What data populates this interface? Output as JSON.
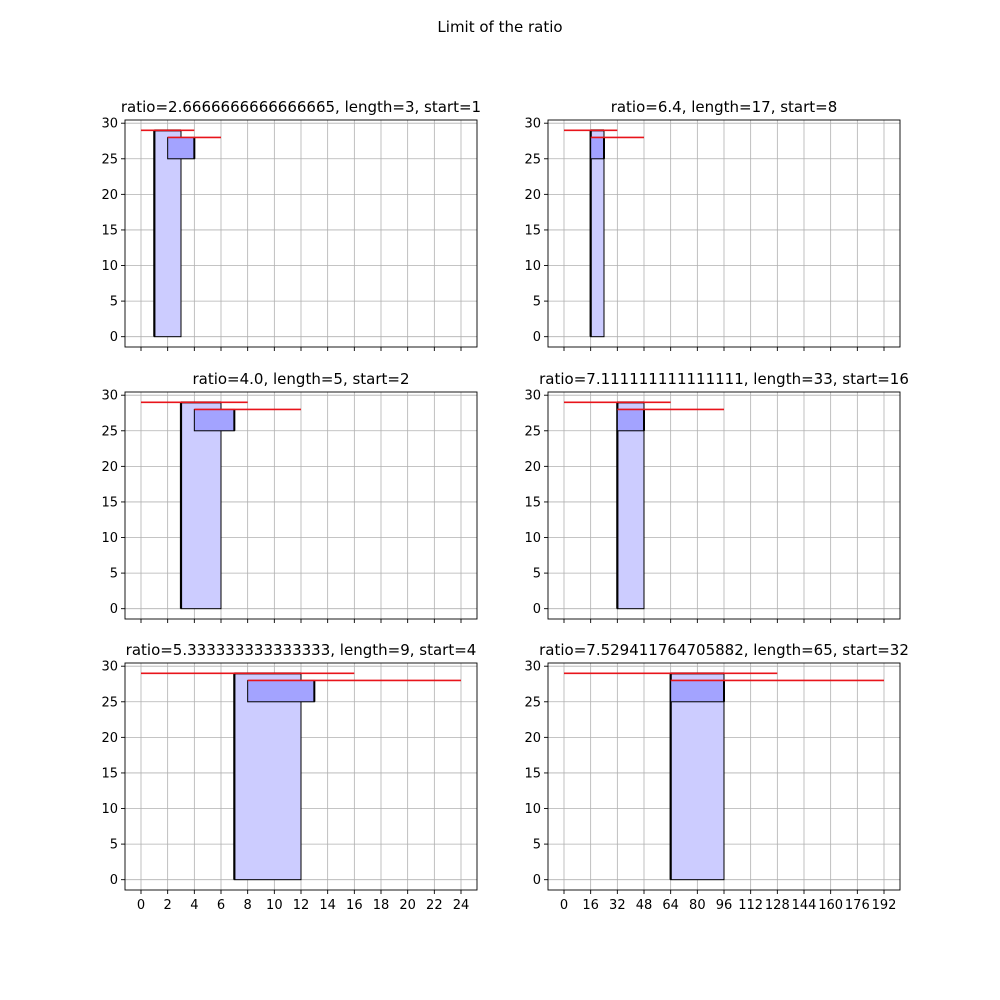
{
  "figure": {
    "suptitle": "Limit of the ratio"
  },
  "colors": {
    "grid": "#b0b0b0",
    "light_fill": "#ccccff",
    "dark_fill": "#a3a3ff",
    "red_line": "#e8141b",
    "edge": "#000000"
  },
  "chart_data": [
    {
      "type": "bar",
      "title": "ratio=2.6666666666666665, length=3, start=1",
      "xlim": [
        -1.2,
        25.2
      ],
      "ylim": [
        -1.45,
        30.45
      ],
      "yticks": [
        0,
        5,
        10,
        15,
        20,
        25,
        30
      ],
      "xticks": [
        0,
        2,
        4,
        6,
        8,
        10,
        12,
        14,
        16,
        18,
        20,
        22,
        24
      ],
      "xtick_labels_shown": false,
      "light_bar": {
        "x0": 1,
        "x1": 3,
        "y0": 0,
        "y1": 29
      },
      "dark_bar": {
        "x0": 2,
        "x1": 4,
        "y0": 25,
        "y1": 28
      },
      "red_lines": [
        {
          "x0": 0,
          "x1": 4,
          "y": 29
        },
        {
          "x0": 2,
          "x1": 6,
          "y": 28
        }
      ]
    },
    {
      "type": "bar",
      "title": "ratio=6.4, length=17, start=8",
      "xlim": [
        -9.6,
        201.6
      ],
      "ylim": [
        -1.45,
        30.45
      ],
      "yticks": [
        0,
        5,
        10,
        15,
        20,
        25,
        30
      ],
      "xticks": [
        0,
        16,
        32,
        48,
        64,
        80,
        96,
        112,
        128,
        144,
        160,
        176,
        192
      ],
      "xtick_labels_shown": false,
      "light_bar": {
        "x0": 16,
        "x1": 24,
        "y0": 0,
        "y1": 29
      },
      "dark_bar": {
        "x0": 16,
        "x1": 24,
        "y0": 25,
        "y1": 28
      },
      "red_lines": [
        {
          "x0": 0,
          "x1": 32,
          "y": 29
        },
        {
          "x0": 16,
          "x1": 48,
          "y": 28
        }
      ]
    },
    {
      "type": "bar",
      "title": "ratio=4.0, length=5, start=2",
      "xlim": [
        -1.2,
        25.2
      ],
      "ylim": [
        -1.45,
        30.45
      ],
      "yticks": [
        0,
        5,
        10,
        15,
        20,
        25,
        30
      ],
      "xticks": [
        0,
        2,
        4,
        6,
        8,
        10,
        12,
        14,
        16,
        18,
        20,
        22,
        24
      ],
      "xtick_labels_shown": false,
      "light_bar": {
        "x0": 3,
        "x1": 6,
        "y0": 0,
        "y1": 29
      },
      "dark_bar": {
        "x0": 4,
        "x1": 7,
        "y0": 25,
        "y1": 28
      },
      "red_lines": [
        {
          "x0": 0,
          "x1": 8,
          "y": 29
        },
        {
          "x0": 4,
          "x1": 12,
          "y": 28
        }
      ]
    },
    {
      "type": "bar",
      "title": "ratio=7.111111111111111, length=33, start=16",
      "xlim": [
        -9.6,
        201.6
      ],
      "ylim": [
        -1.45,
        30.45
      ],
      "yticks": [
        0,
        5,
        10,
        15,
        20,
        25,
        30
      ],
      "xticks": [
        0,
        16,
        32,
        48,
        64,
        80,
        96,
        112,
        128,
        144,
        160,
        176,
        192
      ],
      "xtick_labels_shown": false,
      "light_bar": {
        "x0": 32,
        "x1": 48,
        "y0": 0,
        "y1": 29
      },
      "dark_bar": {
        "x0": 32,
        "x1": 48,
        "y0": 25,
        "y1": 28
      },
      "red_lines": [
        {
          "x0": 0,
          "x1": 64,
          "y": 29
        },
        {
          "x0": 32,
          "x1": 96,
          "y": 28
        }
      ]
    },
    {
      "type": "bar",
      "title": "ratio=5.333333333333333, length=9, start=4",
      "xlim": [
        -1.2,
        25.2
      ],
      "ylim": [
        -1.45,
        30.45
      ],
      "yticks": [
        0,
        5,
        10,
        15,
        20,
        25,
        30
      ],
      "xticks": [
        0,
        2,
        4,
        6,
        8,
        10,
        12,
        14,
        16,
        18,
        20,
        22,
        24
      ],
      "xtick_labels_shown": true,
      "light_bar": {
        "x0": 7,
        "x1": 12,
        "y0": 0,
        "y1": 29
      },
      "dark_bar": {
        "x0": 8,
        "x1": 13,
        "y0": 25,
        "y1": 28
      },
      "red_lines": [
        {
          "x0": 0,
          "x1": 16,
          "y": 29
        },
        {
          "x0": 8,
          "x1": 24,
          "y": 28
        }
      ]
    },
    {
      "type": "bar",
      "title": "ratio=7.529411764705882, length=65, start=32",
      "xlim": [
        -9.6,
        201.6
      ],
      "ylim": [
        -1.45,
        30.45
      ],
      "yticks": [
        0,
        5,
        10,
        15,
        20,
        25,
        30
      ],
      "xticks": [
        0,
        16,
        32,
        48,
        64,
        80,
        96,
        112,
        128,
        144,
        160,
        176,
        192
      ],
      "xtick_labels_shown": true,
      "light_bar": {
        "x0": 64,
        "x1": 96,
        "y0": 0,
        "y1": 29
      },
      "dark_bar": {
        "x0": 64,
        "x1": 96,
        "y0": 25,
        "y1": 28
      },
      "red_lines": [
        {
          "x0": 0,
          "x1": 128,
          "y": 29
        },
        {
          "x0": 64,
          "x1": 192,
          "y": 28
        }
      ]
    }
  ]
}
